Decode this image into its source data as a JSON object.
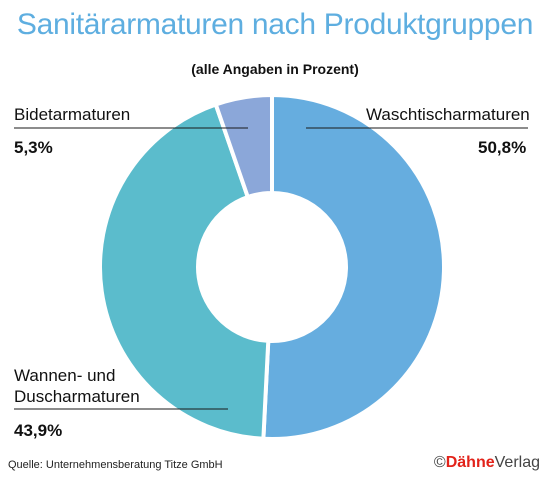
{
  "chart_data": {
    "type": "pie",
    "title": "Sanitärarmaturen nach Produktgruppen",
    "subtitle": "(alle Angaben in Prozent)",
    "slices": [
      {
        "label": "Waschtischarmaturen",
        "value_label": "50,8%",
        "value": 50.8,
        "color": "#66addf"
      },
      {
        "label": "Wannen- und Duscharmaturen",
        "value_label": "43,9%",
        "value": 43.9,
        "color": "#5bbccc"
      },
      {
        "label": "Bidetarmaturen",
        "value_label": "5,3%",
        "value": 5.3,
        "color": "#8ba7d9"
      }
    ]
  },
  "labels": {
    "waschtisch_name": "Waschtischarmaturen",
    "waschtisch_value": "50,8%",
    "bidet_name": "Bidetarmaturen",
    "bidet_value": "5,3%",
    "wannen_line1": "Wannen- und",
    "wannen_line2": "Duscharmaturen",
    "wannen_value": "43,9%"
  },
  "footer": {
    "source": "Quelle: Unternehmensberatung Titze GmbH",
    "copyright": "©",
    "brand": "Dähne",
    "brand_suffix": "Verlag"
  }
}
